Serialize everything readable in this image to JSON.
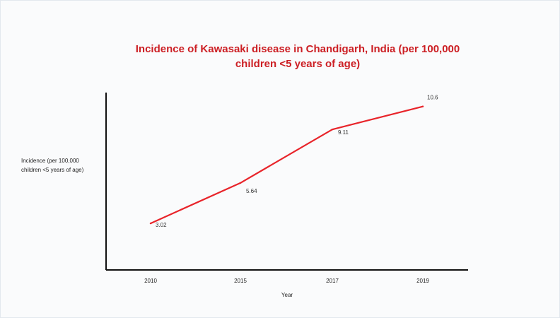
{
  "chart_data": {
    "type": "line",
    "title": "Incidence of Kawasaki disease in Chandigarh, India (per 100,000 children <5 years of age)",
    "xlabel": "Year",
    "ylabel": "Incidence (per 100,000 children <5 years of age)",
    "categories": [
      "2010",
      "2015",
      "2017",
      "2019"
    ],
    "series": [
      {
        "values": [
          3.02,
          5.64,
          9.11,
          10.6
        ],
        "data_labels": [
          "3.02",
          "5.64",
          "9.11",
          "10.6"
        ],
        "color": "#e8242a"
      }
    ],
    "ylim": [
      0,
      11.5
    ],
    "grid": false,
    "legend": "none"
  }
}
